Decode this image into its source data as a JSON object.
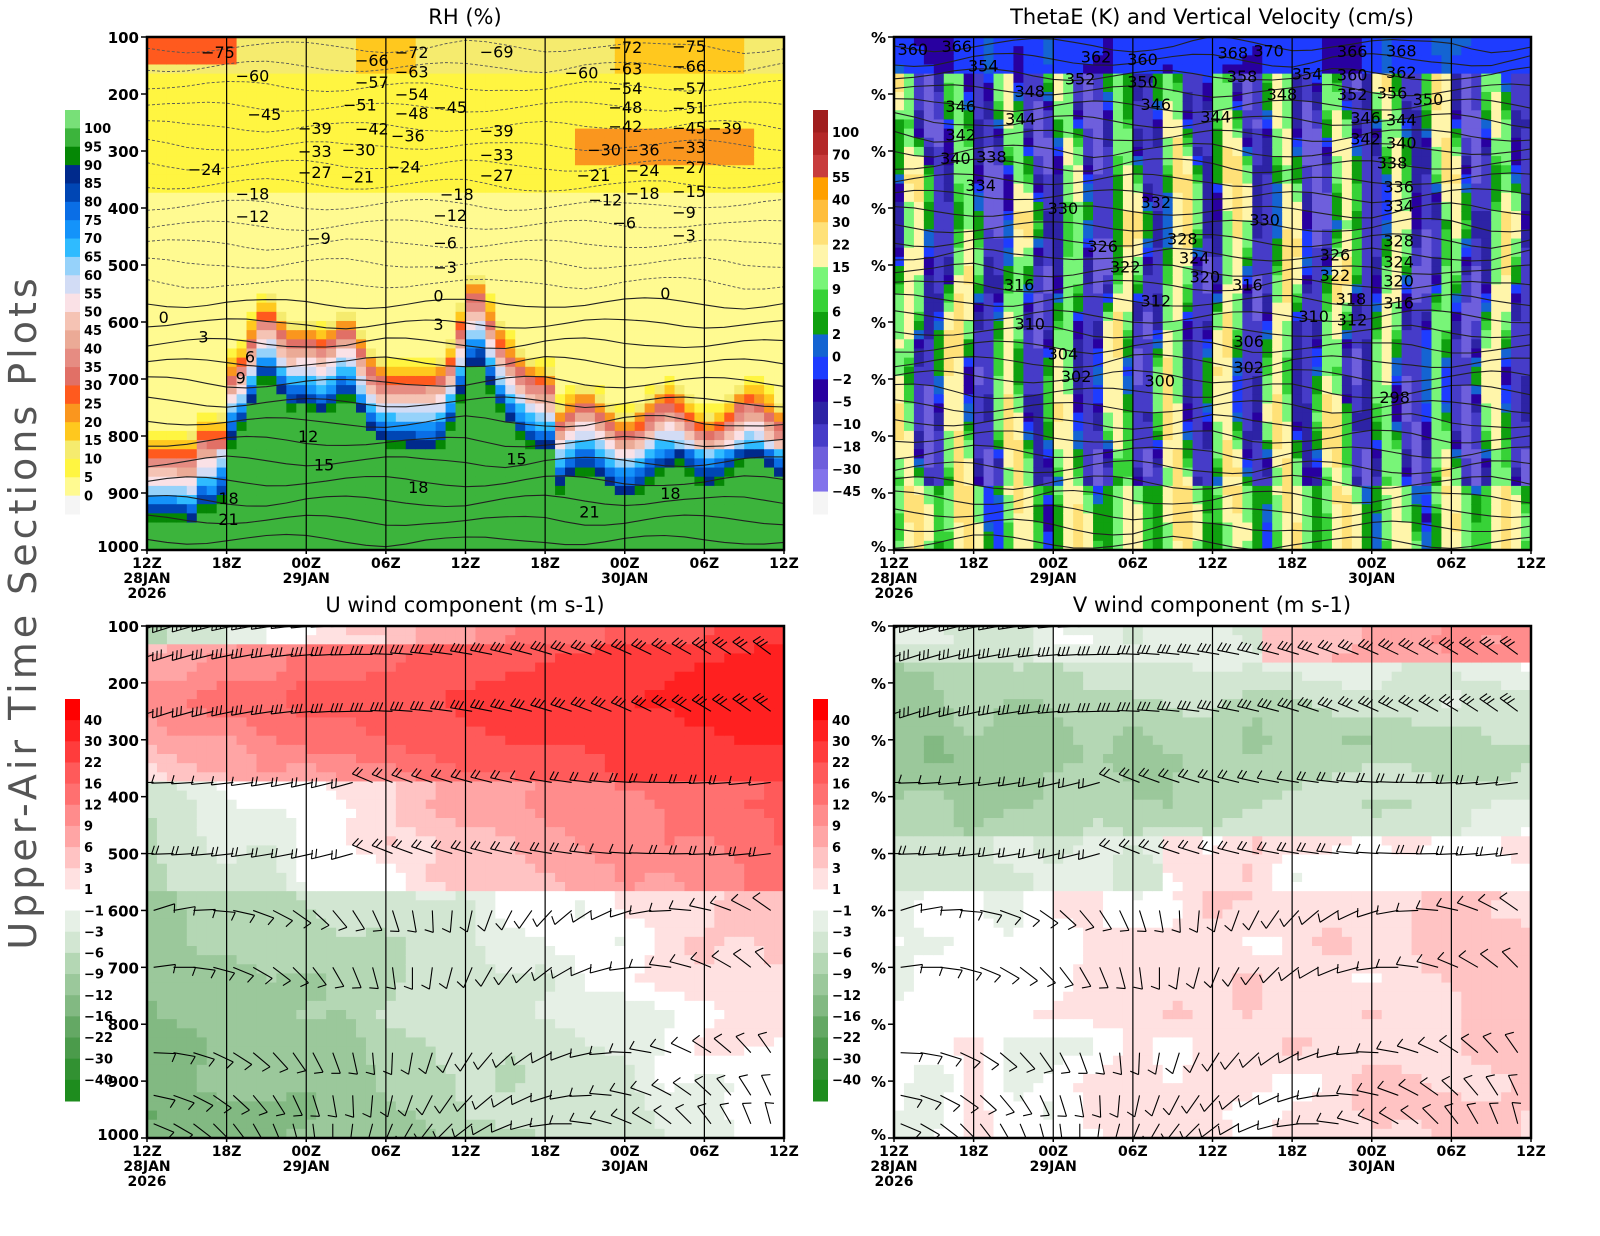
{
  "figure": {
    "side_title": "Upper-Air Time Sections Plots"
  },
  "time_axis": {
    "ticks": [
      "12Z",
      "18Z",
      "00Z",
      "06Z",
      "12Z",
      "18Z",
      "00Z",
      "06Z",
      "12Z"
    ],
    "date_labels": [
      {
        "tick_index": 0,
        "lines": [
          "28JAN",
          "2026"
        ]
      },
      {
        "tick_index": 2,
        "lines": [
          "29JAN"
        ]
      },
      {
        "tick_index": 6,
        "lines": [
          "30JAN"
        ]
      }
    ]
  },
  "chart_data": [
    {
      "id": "rh",
      "type": "heatmap",
      "title": "RH (%)",
      "xlabel": "",
      "ylabel": "",
      "y_tick_labels": [
        "100",
        "200",
        "300",
        "400",
        "500",
        "600",
        "700",
        "800",
        "900",
        "1000"
      ],
      "y_values_hpa": [
        100,
        200,
        300,
        400,
        500,
        600,
        700,
        800,
        900,
        1000
      ],
      "ylim": [
        1000,
        100
      ],
      "x_range_hours": [
        0,
        48
      ],
      "colorbar": {
        "labels": [
          "100",
          "95",
          "90",
          "85",
          "80",
          "75",
          "70",
          "65",
          "60",
          "55",
          "50",
          "45",
          "40",
          "35",
          "30",
          "25",
          "20",
          "15",
          "10",
          "5",
          "0"
        ],
        "colors": [
          "#78e078",
          "#3cb43c",
          "#058705",
          "#002a8c",
          "#0046b4",
          "#0a6ee6",
          "#1493fa",
          "#2fbbff",
          "#96d2fa",
          "#d2dcf5",
          "#fae1e6",
          "#f5c3b4",
          "#ebaa96",
          "#e68c82",
          "#e17066",
          "#ff5a1e",
          "#fa961e",
          "#ffc81e",
          "#f5eb6e",
          "#fff541",
          "#fffa91",
          "#f5f5f5"
        ]
      },
      "contour_field": "Temperature (C)",
      "contour_labels": [
        {
          "v": "-75",
          "t": 4.0,
          "p": 118
        },
        {
          "v": "-60",
          "t": 6.6,
          "p": 170
        },
        {
          "v": "-45",
          "t": 7.5,
          "p": 238
        },
        {
          "v": "-39",
          "t": 11.3,
          "p": 262
        },
        {
          "v": "-33",
          "t": 11.3,
          "p": 282
        },
        {
          "v": "-27",
          "t": 11.3,
          "p": 308
        },
        {
          "v": "-24",
          "t": 3.0,
          "p": 334
        },
        {
          "v": "-18",
          "t": 6.6,
          "p": 377
        },
        {
          "v": "-12",
          "t": 6.6,
          "p": 417
        },
        {
          "v": "-9",
          "t": 12.0,
          "p": 455
        },
        {
          "v": "-66",
          "t": 16.5,
          "p": 143
        },
        {
          "v": "-57",
          "t": 16.5,
          "p": 182
        },
        {
          "v": "-51",
          "t": 16.5,
          "p": 200
        },
        {
          "v": "-42",
          "t": 16.5,
          "p": 253
        },
        {
          "v": "-36",
          "t": 16.5,
          "p": 275
        },
        {
          "v": "-30",
          "t": 14.6,
          "p": 300
        },
        {
          "v": "-21",
          "t": 13.6,
          "p": 347
        },
        {
          "v": "-72",
          "t": 18.6,
          "p": 118
        },
        {
          "v": "-63",
          "t": 18.6,
          "p": 153
        },
        {
          "v": "-54",
          "t": 18.6,
          "p": 192
        },
        {
          "v": "-48",
          "t": 18.6,
          "p": 215
        },
        {
          "v": "-24",
          "t": 18.0,
          "p": 330
        },
        {
          "v": "-45",
          "t": 21.5,
          "p": 225
        },
        {
          "v": "-18",
          "t": 22.0,
          "p": 378
        },
        {
          "v": "-12",
          "t": 21.5,
          "p": 415
        },
        {
          "v": "-6",
          "t": 21.5,
          "p": 463
        },
        {
          "v": "-3",
          "t": 21.5,
          "p": 485
        },
        {
          "v": "-69",
          "t": 25.0,
          "p": 128
        },
        {
          "v": "-39",
          "t": 25.0,
          "p": 267
        },
        {
          "v": "-33",
          "t": 25.0,
          "p": 288
        },
        {
          "v": "-27",
          "t": 25.0,
          "p": 313
        },
        {
          "v": "-60",
          "t": 32.3,
          "p": 165
        },
        {
          "v": "-21",
          "t": 32.3,
          "p": 345
        },
        {
          "v": "-72",
          "t": 34.7,
          "p": 120
        },
        {
          "v": "-63",
          "t": 34.7,
          "p": 158
        },
        {
          "v": "-54",
          "t": 34.7,
          "p": 192
        },
        {
          "v": "-48",
          "t": 34.7,
          "p": 215
        },
        {
          "v": "-42",
          "t": 34.7,
          "p": 238
        },
        {
          "v": "-36",
          "t": 36.0,
          "p": 268
        },
        {
          "v": "-30",
          "t": 34.0,
          "p": 300
        },
        {
          "v": "-24",
          "t": 36.0,
          "p": 325
        },
        {
          "v": "-18",
          "t": 36.0,
          "p": 355
        },
        {
          "v": "-12",
          "t": 35.0,
          "p": 388
        },
        {
          "v": "-6",
          "t": 35.0,
          "p": 428
        },
        {
          "v": "-75",
          "t": 39.5,
          "p": 108
        },
        {
          "v": "-66",
          "t": 39.5,
          "p": 143
        },
        {
          "v": "-57",
          "t": 39.5,
          "p": 182
        },
        {
          "v": "-51",
          "t": 39.5,
          "p": 205
        },
        {
          "v": "-45",
          "t": 39.5,
          "p": 230
        },
        {
          "v": "-39",
          "t": 39.5,
          "p": 262
        },
        {
          "v": "-33",
          "t": 39.5,
          "p": 285
        },
        {
          "v": "-27",
          "t": 39.5,
          "p": 310
        },
        {
          "v": "-15",
          "t": 39.5,
          "p": 362
        },
        {
          "v": "-9",
          "t": 39.5,
          "p": 410
        },
        {
          "v": "-3",
          "t": 39.5,
          "p": 450
        },
        {
          "v": "0",
          "t": 0.8,
          "p": 594
        },
        {
          "v": "3",
          "t": 3.8,
          "p": 628
        },
        {
          "v": "6",
          "t": 7.3,
          "p": 663
        },
        {
          "v": "9",
          "t": 6.6,
          "p": 700
        },
        {
          "v": "12",
          "t": 11.3,
          "p": 803
        },
        {
          "v": "15",
          "t": 12.5,
          "p": 853
        },
        {
          "v": "18",
          "t": 5.3,
          "p": 911
        },
        {
          "v": "21",
          "t": 5.3,
          "p": 948
        },
        {
          "v": "0",
          "t": 21.5,
          "p": 556
        },
        {
          "v": "3",
          "t": 21.5,
          "p": 606
        },
        {
          "v": "15",
          "t": 27.0,
          "p": 842
        },
        {
          "v": "18",
          "t": 19.6,
          "p": 892
        },
        {
          "v": "21",
          "t": 32.5,
          "p": 935
        },
        {
          "v": "0",
          "t": 38.6,
          "p": 552
        },
        {
          "v": "18",
          "t": 38.6,
          "p": 903
        }
      ]
    },
    {
      "id": "thetae",
      "type": "heatmap",
      "title": "ThetaE (K) and Vertical Velocity (cm/s)",
      "xlabel": "",
      "ylabel": "",
      "y_tick_labels": [
        "%",
        "%",
        "%",
        "%",
        "%",
        "%",
        "%",
        "%",
        "%",
        "%"
      ],
      "x_range_hours": [
        0,
        48
      ],
      "colorbar": {
        "labels": [
          "100",
          "70",
          "55",
          "40",
          "30",
          "22",
          "15",
          "9",
          "6",
          "2",
          "0",
          "-2",
          "-5",
          "-10",
          "-18",
          "-30",
          "-45"
        ],
        "colors": [
          "#a01e1e",
          "#b42828",
          "#c83c3c",
          "#ffa000",
          "#ffbe3c",
          "#ffe178",
          "#fff5aa",
          "#78f578",
          "#37d237",
          "#0fa00f",
          "#1464d2",
          "#1e3cff",
          "#2800a0",
          "#2d23a5",
          "#463cc8",
          "#6e5fdc",
          "#8273eb",
          "#f5f5f5"
        ]
      },
      "contour_field": "ThetaE (K)",
      "contour_labels": [
        {
          "v": "366",
          "t": 3.5,
          "p": 108
        },
        {
          "v": "360",
          "t": 2.0,
          "p": 124
        },
        {
          "v": "354",
          "t": 5.5,
          "p": 153
        },
        {
          "v": "348",
          "t": 9.0,
          "p": 197
        },
        {
          "v": "346",
          "t": 3.8,
          "p": 224
        },
        {
          "v": "344",
          "t": 8.3,
          "p": 246
        },
        {
          "v": "342",
          "t": 3.8,
          "p": 274
        },
        {
          "v": "340",
          "t": 3.4,
          "p": 294
        },
        {
          "v": "338",
          "t": 3.4,
          "p": 312
        },
        {
          "v": "334",
          "t": 5.3,
          "p": 362
        },
        {
          "v": "330",
          "t": 11.5,
          "p": 403
        },
        {
          "v": "326",
          "t": 14.5,
          "p": 469
        },
        {
          "v": "322",
          "t": 16.2,
          "p": 495
        },
        {
          "v": "316",
          "t": 8.2,
          "p": 537
        },
        {
          "v": "310",
          "t": 9.0,
          "p": 605
        },
        {
          "v": "304",
          "t": 11.5,
          "p": 658
        },
        {
          "v": "302",
          "t": 12.5,
          "p": 687
        },
        {
          "v": "300",
          "t": 18.8,
          "p": 705
        },
        {
          "v": "362",
          "t": 14.0,
          "p": 137
        },
        {
          "v": "360",
          "t": 17.5,
          "p": 141
        },
        {
          "v": "352",
          "t": 12.8,
          "p": 175
        },
        {
          "v": "350",
          "t": 17.5,
          "p": 181
        },
        {
          "v": "346",
          "t": 18.5,
          "p": 220
        },
        {
          "v": "344",
          "t": 23.0,
          "p": 242
        },
        {
          "v": "332",
          "t": 18.5,
          "p": 392
        },
        {
          "v": "328",
          "t": 20.5,
          "p": 456
        },
        {
          "v": "324",
          "t": 21.4,
          "p": 479
        },
        {
          "v": "320",
          "t": 22.2,
          "p": 502
        },
        {
          "v": "316",
          "t": 24.5,
          "p": 537
        },
        {
          "v": "312",
          "t": 18.5,
          "p": 565
        },
        {
          "v": "306",
          "t": 25.5,
          "p": 636
        },
        {
          "v": "302",
          "t": 25.5,
          "p": 682
        },
        {
          "v": "368",
          "t": 24.3,
          "p": 130
        },
        {
          "v": "370",
          "t": 27.0,
          "p": 116
        },
        {
          "v": "358",
          "t": 25.0,
          "p": 171
        },
        {
          "v": "348",
          "t": 28.0,
          "p": 203
        },
        {
          "v": "330",
          "t": 26.7,
          "p": 423
        },
        {
          "v": "326",
          "t": 32.0,
          "p": 484
        },
        {
          "v": "322",
          "t": 32.0,
          "p": 510
        },
        {
          "v": "318",
          "t": 33.2,
          "p": 530
        },
        {
          "v": "310",
          "t": 31.3,
          "p": 592
        },
        {
          "v": "354",
          "t": 30.8,
          "p": 167
        },
        {
          "v": "366",
          "t": 33.3,
          "p": 127
        },
        {
          "v": "360",
          "t": 33.3,
          "p": 147
        },
        {
          "v": "352",
          "t": 33.3,
          "p": 171
        },
        {
          "v": "346",
          "t": 34.3,
          "p": 223
        },
        {
          "v": "342",
          "t": 34.3,
          "p": 249
        },
        {
          "v": "368",
          "t": 37.0,
          "p": 126
        },
        {
          "v": "362",
          "t": 37.0,
          "p": 143
        },
        {
          "v": "356",
          "t": 36.3,
          "p": 158
        },
        {
          "v": "350",
          "t": 36.3,
          "p": 180
        },
        {
          "v": "344",
          "t": 37.0,
          "p": 237
        },
        {
          "v": "340",
          "t": 37.0,
          "p": 256
        },
        {
          "v": "338",
          "t": 36.3,
          "p": 302
        },
        {
          "v": "336",
          "t": 36.8,
          "p": 354
        },
        {
          "v": "334",
          "t": 36.8,
          "p": 377
        },
        {
          "v": "328",
          "t": 36.8,
          "p": 460
        },
        {
          "v": "324",
          "t": 36.8,
          "p": 486
        },
        {
          "v": "320",
          "t": 36.8,
          "p": 509
        },
        {
          "v": "316",
          "t": 36.8,
          "p": 537
        },
        {
          "v": "312",
          "t": 36.0,
          "p": 567
        },
        {
          "v": "298",
          "t": 36.5,
          "p": 734
        }
      ]
    },
    {
      "id": "u",
      "type": "heatmap",
      "title": "U wind component (m s-1)",
      "xlabel": "",
      "ylabel": "",
      "y_tick_labels": [
        "100",
        "200",
        "300",
        "400",
        "500",
        "600",
        "700",
        "800",
        "900",
        "1000"
      ],
      "y_values_hpa": [
        100,
        200,
        300,
        400,
        500,
        600,
        700,
        800,
        900,
        1000
      ],
      "ylim": [
        1000,
        100
      ],
      "x_range_hours": [
        0,
        48
      ],
      "colorbar": {
        "labels": [
          "40",
          "30",
          "22",
          "16",
          "12",
          "9",
          "6",
          "3",
          "1",
          "-1",
          "-3",
          "-6",
          "-9",
          "-12",
          "-16",
          "-22",
          "-30",
          "-40"
        ],
        "colors": [
          "#ff0000",
          "#ff2020",
          "#ff3c3c",
          "#ff5a5a",
          "#ff7070",
          "#ff8c8c",
          "#ffa5a5",
          "#ffc3c3",
          "#ffe1e1",
          "#ffffff",
          "#e6f0e6",
          "#d2e6d2",
          "#b4d7b4",
          "#9bc89b",
          "#82b982",
          "#64a864",
          "#4b9b4b",
          "#329132",
          "#1e8c1e"
        ]
      },
      "barb_levels_hpa": [
        100,
        150,
        250,
        375,
        500,
        600,
        700,
        850,
        925,
        975
      ]
    },
    {
      "id": "v",
      "type": "heatmap",
      "title": "V wind component (m s-1)",
      "xlabel": "",
      "ylabel": "",
      "y_tick_labels": [
        "%",
        "%",
        "%",
        "%",
        "%",
        "%",
        "%",
        "%",
        "%",
        "%"
      ],
      "x_range_hours": [
        0,
        48
      ],
      "colorbar": {
        "labels": [
          "40",
          "30",
          "22",
          "16",
          "12",
          "9",
          "6",
          "3",
          "1",
          "-1",
          "-3",
          "-6",
          "-9",
          "-12",
          "-16",
          "-22",
          "-30",
          "-40"
        ],
        "colors": [
          "#ff0000",
          "#ff2020",
          "#ff3c3c",
          "#ff5a5a",
          "#ff7070",
          "#ff8c8c",
          "#ffa5a5",
          "#ffc3c3",
          "#ffe1e1",
          "#ffffff",
          "#e6f0e6",
          "#d2e6d2",
          "#b4d7b4",
          "#9bc89b",
          "#82b982",
          "#64a864",
          "#4b9b4b",
          "#329132",
          "#1e8c1e"
        ]
      },
      "barb_levels_hpa": [
        100,
        150,
        250,
        375,
        500,
        600,
        700,
        850,
        925,
        975
      ]
    }
  ]
}
